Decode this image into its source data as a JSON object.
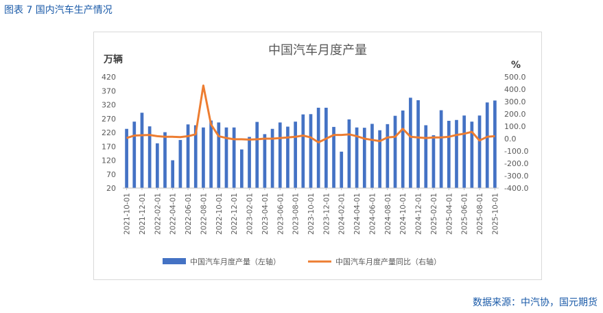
{
  "figure_title": "图表 7 国内汽车生产情况",
  "source_note": "数据来源：中汽协，国元期货",
  "chart_data": {
    "type": "bar",
    "title": "中国汽车月度产量",
    "left_unit": "万辆",
    "right_unit": "%",
    "left_ticks": [
      20,
      70,
      120,
      170,
      220,
      270,
      320,
      370,
      420
    ],
    "right_ticks": [
      "500.0",
      "400.0",
      "300.0",
      "200.0",
      "100.0",
      "0.0",
      "-100.0",
      "-200.0",
      "-300.0",
      "-400.0"
    ],
    "ylim_left": [
      20,
      420
    ],
    "ylim_right": [
      -400,
      500
    ],
    "categories": [
      "2021-10",
      "2021-11",
      "2021-12",
      "2022-01",
      "2022-02",
      "2022-03",
      "2022-04",
      "2022-05",
      "2022-06",
      "2022-07",
      "2022-08",
      "2022-09",
      "2022-10",
      "2022-11",
      "2022-12",
      "2023-01",
      "2023-02",
      "2023-03",
      "2023-04",
      "2023-05",
      "2023-06",
      "2023-07",
      "2023-08",
      "2023-09",
      "2023-10",
      "2023-11",
      "2023-12",
      "2024-01",
      "2024-02",
      "2024-03",
      "2024-04",
      "2024-05",
      "2024-06",
      "2024-07",
      "2024-08",
      "2024-09",
      "2024-10",
      "2024-11",
      "2024-12",
      "2025-01",
      "2025-02",
      "2025-03",
      "2025-04",
      "2025-05",
      "2025-06",
      "2025-07",
      "2025-08",
      "2025-09",
      "2025-10"
    ],
    "x_tick_labels": [
      "2021-10-01",
      "2021-12-01",
      "2022-02-01",
      "2022-04-01",
      "2022-06-01",
      "2022-08-01",
      "2022-10-01",
      "2022-12-01",
      "2023-02-01",
      "2023-04-01",
      "2023-06-01",
      "2023-08-01",
      "2023-10-01",
      "2023-12-01",
      "2024-02-01",
      "2024-04-01",
      "2024-06-01",
      "2024-08-01",
      "2024-10-01",
      "2024-12-01",
      "2025-02-01",
      "2025-04-01",
      "2025-06-01",
      "2025-08-01",
      "2025-10-01"
    ],
    "series": [
      {
        "name": "中国汽车月度产量（左轴）",
        "axis": "left",
        "kind": "bar",
        "color": "#4472c4",
        "values": [
          233,
          259,
          291,
          242,
          181,
          221,
          120,
          193,
          249,
          246,
          238,
          263,
          256,
          238,
          238,
          159,
          204,
          258,
          214,
          233,
          256,
          241,
          259,
          285,
          286,
          309,
          309,
          240,
          151,
          267,
          238,
          237,
          251,
          228,
          250,
          280,
          299,
          345,
          336,
          246,
          210,
          300,
          262,
          265,
          281,
          259,
          281,
          328,
          335
        ]
      },
      {
        "name": "中国汽车月度产量同比（右轴）",
        "axis": "right",
        "kind": "line",
        "color": "#ed7d31",
        "values": [
          5,
          25,
          28,
          30,
          20,
          15,
          15,
          12,
          20,
          35,
          430,
          115,
          20,
          5,
          -5,
          -5,
          -8,
          -5,
          0,
          0,
          5,
          10,
          15,
          25,
          10,
          -30,
          0,
          30,
          30,
          35,
          20,
          0,
          -10,
          -20,
          10,
          15,
          80,
          15,
          10,
          5,
          10,
          10,
          15,
          30,
          40,
          55,
          -15,
          15,
          20
        ]
      }
    ],
    "legend_position": "bottom",
    "grid": false
  }
}
